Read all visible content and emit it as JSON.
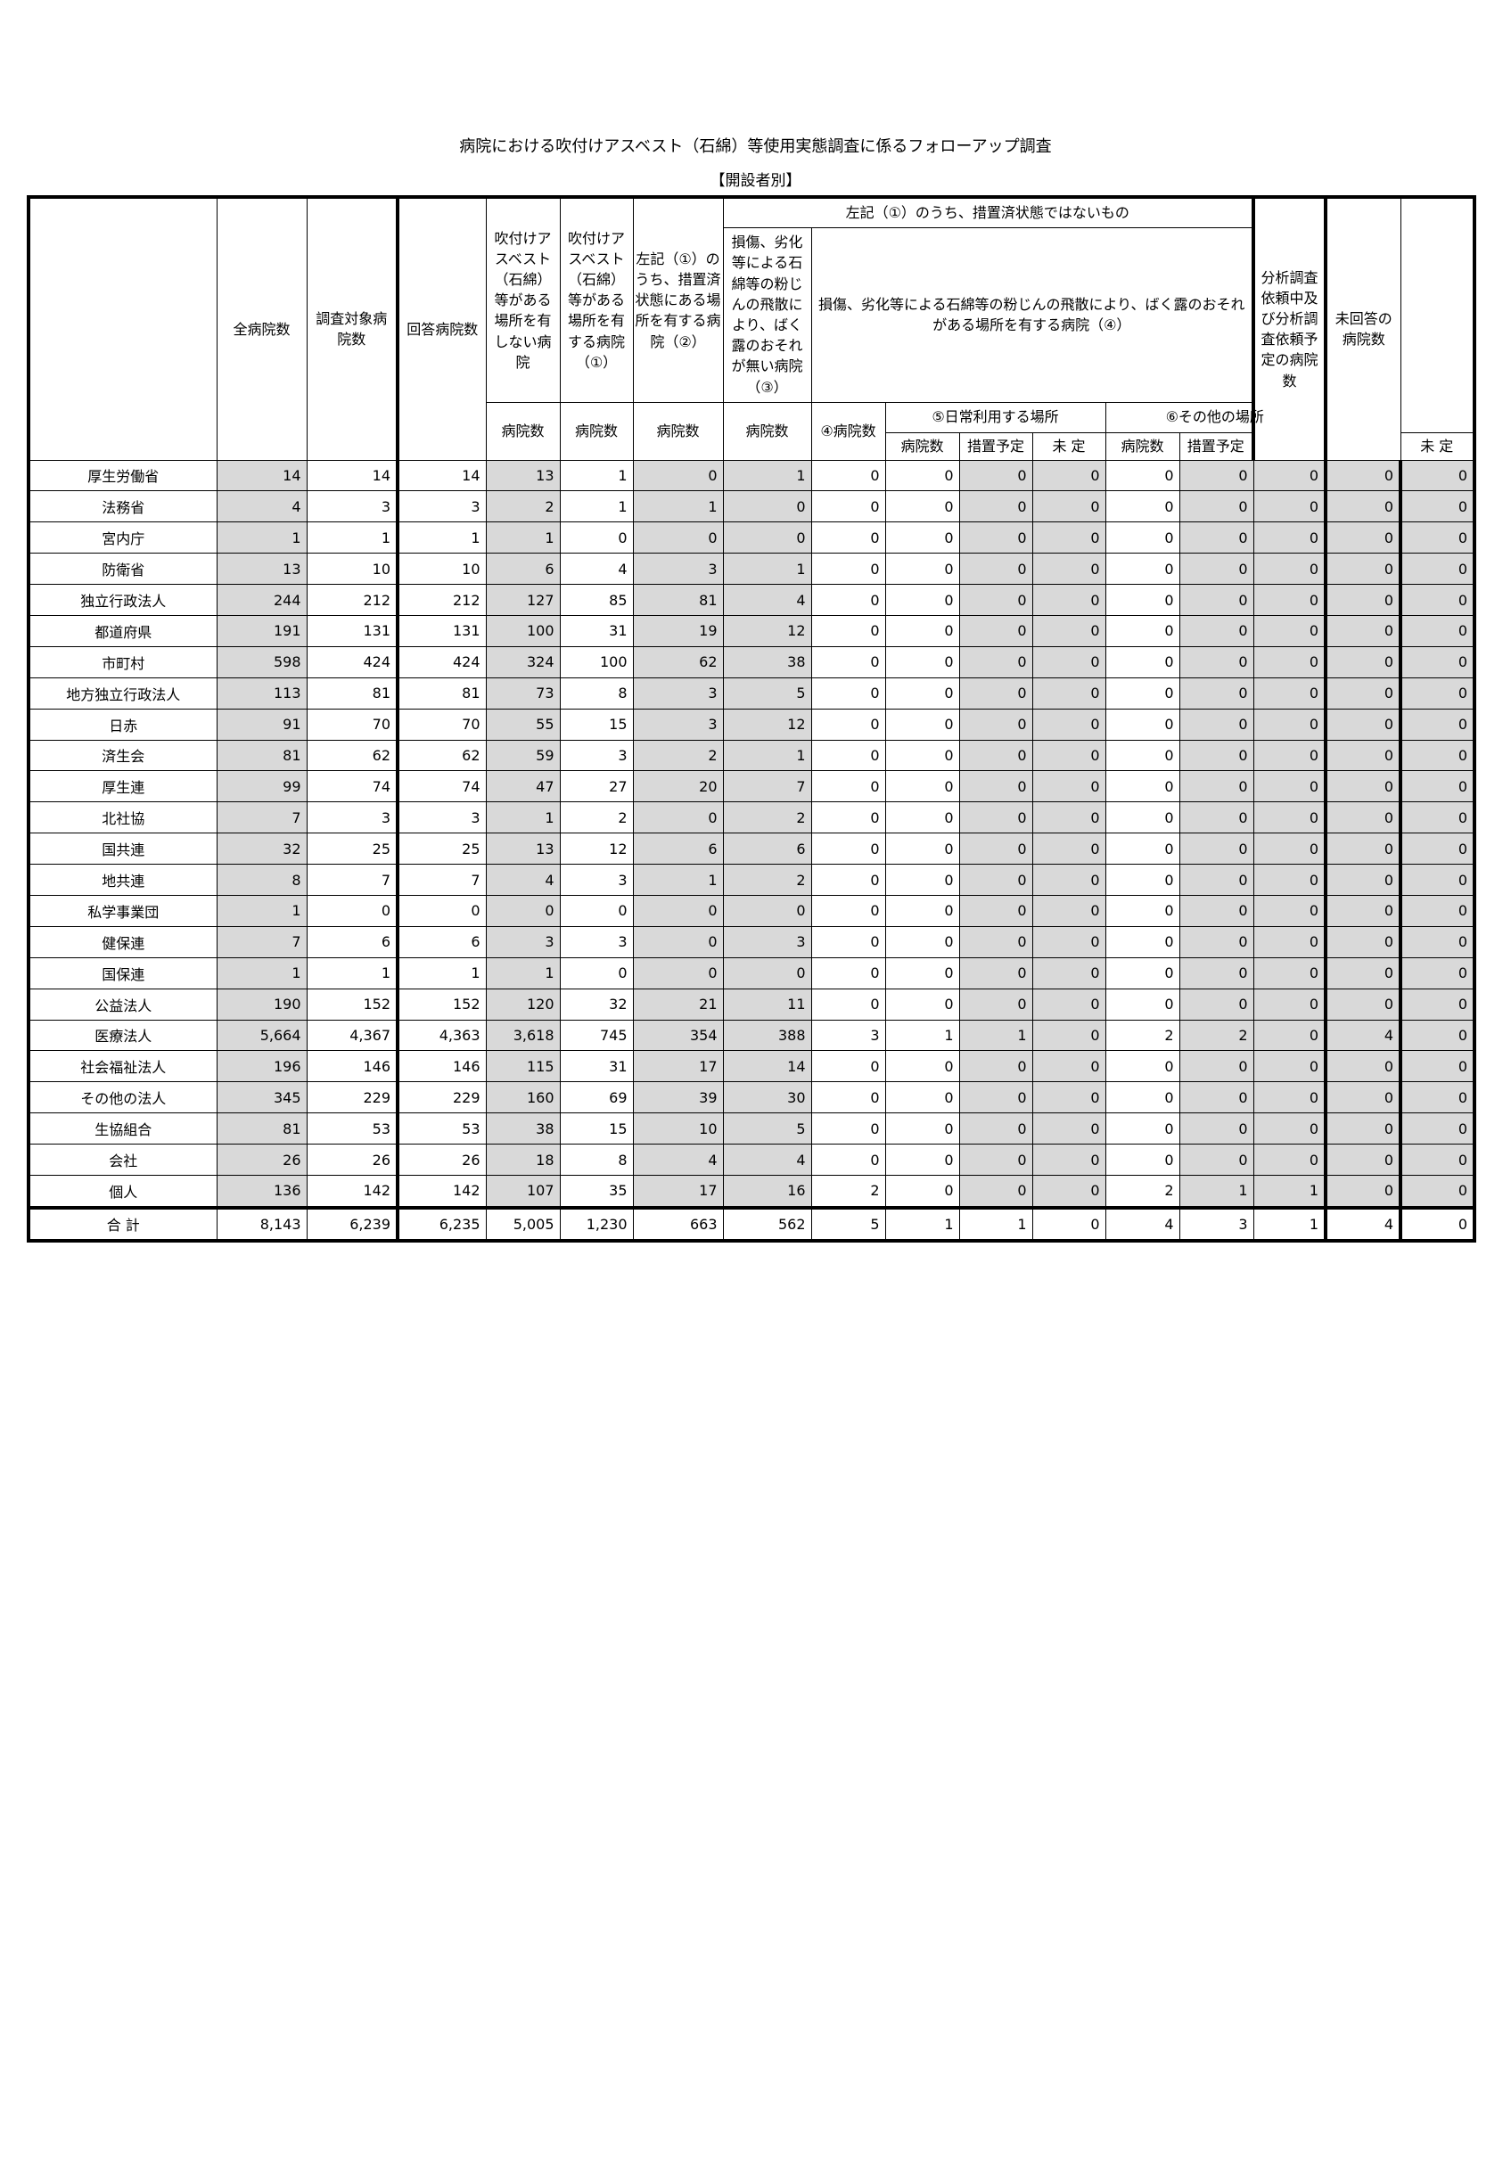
{
  "title": "病院における吹付けアスベスト（石綿）等使用実態調査に係るフォローアップ調査",
  "subtitle": "【開設者別】",
  "headers": {
    "all": "全病院数",
    "target": "調査対象病院数",
    "answered": "回答病院数",
    "none": "吹付けアスベスト（石綿）等がある場所を有しない病院",
    "c1": "吹付けアスベスト（石綿）等がある場所を有する病院（①）",
    "c2": "左記（①）のうち、措置済状態にある場所を有する病院（②）",
    "not_done": "左記（①）のうち、措置済状態ではないもの",
    "c3": "損傷、劣化等による石綿等の粉じんの飛散により、ばく露のおそれが無い病院（③）",
    "c4": "損傷、劣化等による石綿等の粉じんの飛散により、ばく露のおそれがある場所を有する病院（④）",
    "c4_count": "④病院数",
    "c5": "⑤日常利用する場所",
    "c6": "⑥その他の場所",
    "hosp_count": "病院数",
    "planned": "措置予定",
    "undecided": "未 定",
    "analysis": "分析調査依頼中及び分析調査依頼予定の病院数",
    "no_answer": "未回答の病院数"
  },
  "rows": [
    {
      "name": "厚生労働省",
      "v": [
        "14",
        "14",
        "14",
        "13",
        "1",
        "0",
        "1",
        "0",
        "0",
        "0",
        "0",
        "0",
        "0",
        "0",
        "0",
        "0"
      ]
    },
    {
      "name": "法務省",
      "v": [
        "4",
        "3",
        "3",
        "2",
        "1",
        "1",
        "0",
        "0",
        "0",
        "0",
        "0",
        "0",
        "0",
        "0",
        "0",
        "0"
      ]
    },
    {
      "name": "宮内庁",
      "v": [
        "1",
        "1",
        "1",
        "1",
        "0",
        "0",
        "0",
        "0",
        "0",
        "0",
        "0",
        "0",
        "0",
        "0",
        "0",
        "0"
      ]
    },
    {
      "name": "防衛省",
      "v": [
        "13",
        "10",
        "10",
        "6",
        "4",
        "3",
        "1",
        "0",
        "0",
        "0",
        "0",
        "0",
        "0",
        "0",
        "0",
        "0"
      ]
    },
    {
      "name": "独立行政法人",
      "v": [
        "244",
        "212",
        "212",
        "127",
        "85",
        "81",
        "4",
        "0",
        "0",
        "0",
        "0",
        "0",
        "0",
        "0",
        "0",
        "0"
      ]
    },
    {
      "name": "都道府県",
      "v": [
        "191",
        "131",
        "131",
        "100",
        "31",
        "19",
        "12",
        "0",
        "0",
        "0",
        "0",
        "0",
        "0",
        "0",
        "0",
        "0"
      ]
    },
    {
      "name": "市町村",
      "v": [
        "598",
        "424",
        "424",
        "324",
        "100",
        "62",
        "38",
        "0",
        "0",
        "0",
        "0",
        "0",
        "0",
        "0",
        "0",
        "0"
      ]
    },
    {
      "name": "地方独立行政法人",
      "v": [
        "113",
        "81",
        "81",
        "73",
        "8",
        "3",
        "5",
        "0",
        "0",
        "0",
        "0",
        "0",
        "0",
        "0",
        "0",
        "0"
      ]
    },
    {
      "name": "日赤",
      "v": [
        "91",
        "70",
        "70",
        "55",
        "15",
        "3",
        "12",
        "0",
        "0",
        "0",
        "0",
        "0",
        "0",
        "0",
        "0",
        "0"
      ]
    },
    {
      "name": "済生会",
      "v": [
        "81",
        "62",
        "62",
        "59",
        "3",
        "2",
        "1",
        "0",
        "0",
        "0",
        "0",
        "0",
        "0",
        "0",
        "0",
        "0"
      ]
    },
    {
      "name": "厚生連",
      "v": [
        "99",
        "74",
        "74",
        "47",
        "27",
        "20",
        "7",
        "0",
        "0",
        "0",
        "0",
        "0",
        "0",
        "0",
        "0",
        "0"
      ]
    },
    {
      "name": "北社協",
      "v": [
        "7",
        "3",
        "3",
        "1",
        "2",
        "0",
        "2",
        "0",
        "0",
        "0",
        "0",
        "0",
        "0",
        "0",
        "0",
        "0"
      ]
    },
    {
      "name": "国共連",
      "v": [
        "32",
        "25",
        "25",
        "13",
        "12",
        "6",
        "6",
        "0",
        "0",
        "0",
        "0",
        "0",
        "0",
        "0",
        "0",
        "0"
      ]
    },
    {
      "name": "地共連",
      "v": [
        "8",
        "7",
        "7",
        "4",
        "3",
        "1",
        "2",
        "0",
        "0",
        "0",
        "0",
        "0",
        "0",
        "0",
        "0",
        "0"
      ]
    },
    {
      "name": "私学事業団",
      "v": [
        "1",
        "0",
        "0",
        "0",
        "0",
        "0",
        "0",
        "0",
        "0",
        "0",
        "0",
        "0",
        "0",
        "0",
        "0",
        "0"
      ]
    },
    {
      "name": "健保連",
      "v": [
        "7",
        "6",
        "6",
        "3",
        "3",
        "0",
        "3",
        "0",
        "0",
        "0",
        "0",
        "0",
        "0",
        "0",
        "0",
        "0"
      ]
    },
    {
      "name": "国保連",
      "v": [
        "1",
        "1",
        "1",
        "1",
        "0",
        "0",
        "0",
        "0",
        "0",
        "0",
        "0",
        "0",
        "0",
        "0",
        "0",
        "0"
      ]
    },
    {
      "name": "公益法人",
      "v": [
        "190",
        "152",
        "152",
        "120",
        "32",
        "21",
        "11",
        "0",
        "0",
        "0",
        "0",
        "0",
        "0",
        "0",
        "0",
        "0"
      ]
    },
    {
      "name": "医療法人",
      "v": [
        "5,664",
        "4,367",
        "4,363",
        "3,618",
        "745",
        "354",
        "388",
        "3",
        "1",
        "1",
        "0",
        "2",
        "2",
        "0",
        "4",
        "0"
      ]
    },
    {
      "name": "社会福祉法人",
      "v": [
        "196",
        "146",
        "146",
        "115",
        "31",
        "17",
        "14",
        "0",
        "0",
        "0",
        "0",
        "0",
        "0",
        "0",
        "0",
        "0"
      ]
    },
    {
      "name": "その他の法人",
      "v": [
        "345",
        "229",
        "229",
        "160",
        "69",
        "39",
        "30",
        "0",
        "0",
        "0",
        "0",
        "0",
        "0",
        "0",
        "0",
        "0"
      ]
    },
    {
      "name": "生協組合",
      "v": [
        "81",
        "53",
        "53",
        "38",
        "15",
        "10",
        "5",
        "0",
        "0",
        "0",
        "0",
        "0",
        "0",
        "0",
        "0",
        "0"
      ]
    },
    {
      "name": "会社",
      "v": [
        "26",
        "26",
        "26",
        "18",
        "8",
        "4",
        "4",
        "0",
        "0",
        "0",
        "0",
        "0",
        "0",
        "0",
        "0",
        "0"
      ]
    },
    {
      "name": "個人",
      "v": [
        "136",
        "142",
        "142",
        "107",
        "35",
        "17",
        "16",
        "2",
        "0",
        "0",
        "0",
        "2",
        "1",
        "1",
        "0",
        "0"
      ]
    }
  ],
  "total": {
    "name": "合 計",
    "v": [
      "8,143",
      "6,239",
      "6,235",
      "5,005",
      "1,230",
      "663",
      "562",
      "5",
      "1",
      "1",
      "0",
      "4",
      "3",
      "1",
      "4",
      "0"
    ]
  },
  "colors": {
    "shade": "#d9d9d9",
    "border": "#000000"
  }
}
